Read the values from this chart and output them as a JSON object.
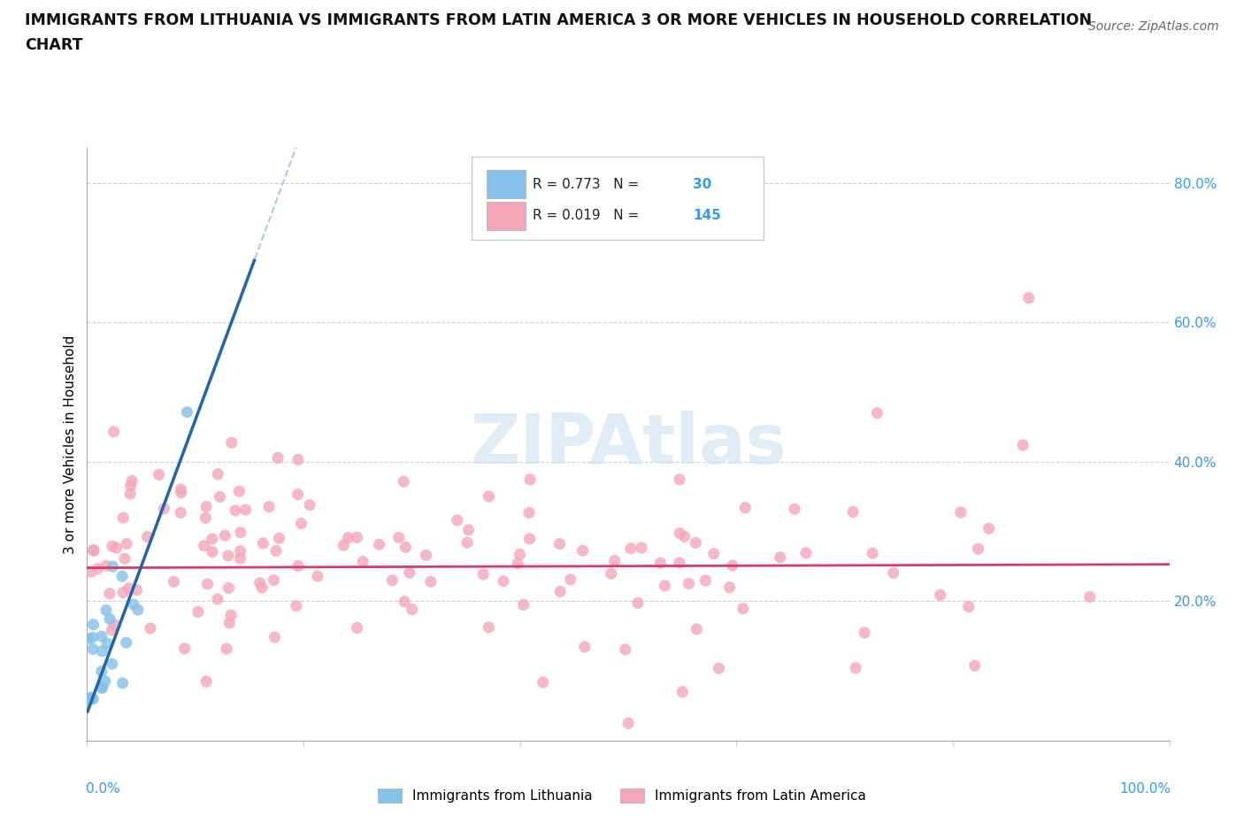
{
  "title_line1": "IMMIGRANTS FROM LITHUANIA VS IMMIGRANTS FROM LATIN AMERICA 3 OR MORE VEHICLES IN HOUSEHOLD CORRELATION",
  "title_line2": "CHART",
  "source": "Source: ZipAtlas.com",
  "ylabel": "3 or more Vehicles in Household",
  "r_lithuania": 0.773,
  "n_lithuania": 30,
  "r_latin": 0.019,
  "n_latin": 145,
  "color_lithuania": "#85c1e8",
  "color_latin": "#f4a7b9",
  "color_lithuania_line": "#2166ac",
  "color_latin_line": "#d63b6e",
  "color_grid": "#cccccc",
  "xlim": [
    0.0,
    1.0
  ],
  "ylim": [
    0.0,
    0.85
  ],
  "ytick_vals": [
    0.0,
    0.2,
    0.4,
    0.6,
    0.8
  ],
  "ytick_labels": [
    "",
    "20.0%",
    "40.0%",
    "60.0%",
    "80.0%"
  ],
  "lith_intercept": 0.04,
  "lith_slope": 4.2,
  "latin_intercept": 0.248,
  "latin_slope": 0.005
}
